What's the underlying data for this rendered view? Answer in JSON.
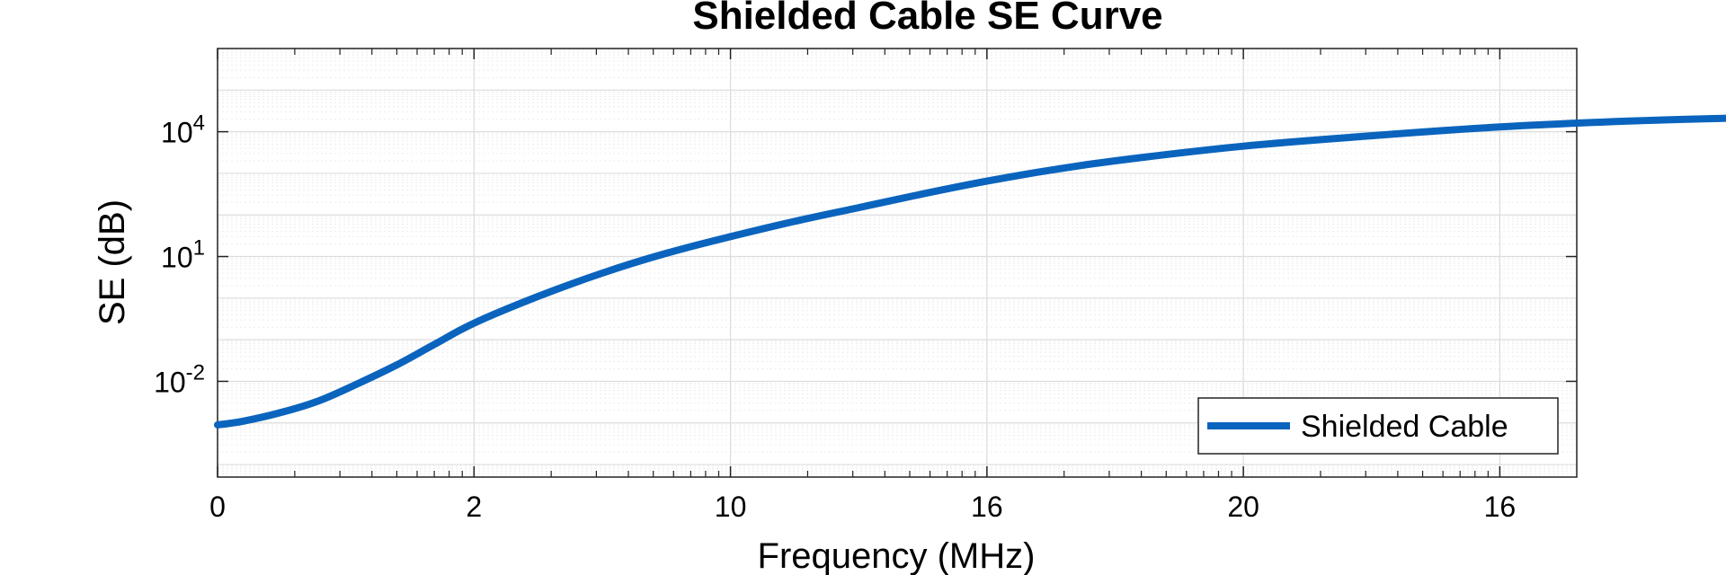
{
  "chart_data": {
    "type": "line",
    "title": "Shielded Cable SE Curve",
    "xlabel": "Frequency (MHz)",
    "ylabel": "SE (dB)",
    "x_tick_labels": [
      "0",
      "2",
      "10",
      "16",
      "20",
      "16"
    ],
    "y_ticks": [
      {
        "value": 0.01,
        "base": "10",
        "exp": "-2"
      },
      {
        "value": 10,
        "base": "10",
        "exp": "1"
      },
      {
        "value": 10000,
        "base": "10",
        "exp": "4"
      }
    ],
    "y_scale": "log",
    "ylim": [
      5e-05,
      1000000
    ],
    "grid": true,
    "legend_position": "bottom-right",
    "series": [
      {
        "name": "Shielded Cable",
        "color": "#0a64bd",
        "x": [
          0,
          0.1,
          0.25,
          0.4,
          0.55,
          0.7,
          0.85,
          1.0,
          1.25,
          1.5,
          1.75,
          2.0,
          2.25,
          2.5,
          2.75,
          3.0,
          3.25,
          3.5,
          4.0,
          4.5,
          5.0,
          5.5,
          6.0
        ],
        "y": [
          0.0009,
          0.0011,
          0.0018,
          0.0035,
          0.009,
          0.025,
          0.08,
          0.25,
          1.1,
          4,
          12,
          30,
          70,
          150,
          320,
          650,
          1200,
          2000,
          4500,
          8000,
          13000,
          18000,
          22000
        ]
      }
    ]
  }
}
